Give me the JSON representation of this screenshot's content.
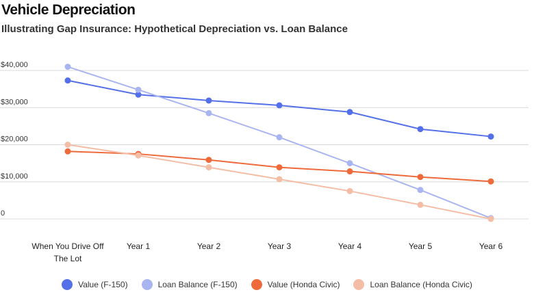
{
  "title": "Vehicle Depreciation",
  "subtitle": "Illustrating Gap Insurance: Hypothetical Depreciation vs. Loan Balance",
  "chart_data": {
    "type": "line",
    "categories": [
      [
        "When You Drive Off",
        "The Lot"
      ],
      [
        "Year 1"
      ],
      [
        "Year 2"
      ],
      [
        "Year 3"
      ],
      [
        "Year 4"
      ],
      [
        "Year 5"
      ],
      [
        "Year 6"
      ]
    ],
    "y_ticks": [
      0,
      10000,
      20000,
      30000,
      40000
    ],
    "y_tick_labels": [
      "0",
      "$10,000",
      "$20,000",
      "$30,000",
      "$40,000"
    ],
    "ylim": [
      0,
      40000
    ],
    "grid": true,
    "legend_position": "bottom",
    "series": [
      {
        "name": "Value (F-150)",
        "color": "#5470e8",
        "values": [
          37300,
          33500,
          31900,
          30600,
          28800,
          24200,
          22200
        ]
      },
      {
        "name": "Loan Balance (F-150)",
        "color": "#a9b5f0",
        "values": [
          41000,
          34800,
          28500,
          22000,
          15000,
          7800,
          200
        ]
      },
      {
        "name": "Value (Honda Civic)",
        "color": "#ef6a3a",
        "values": [
          18200,
          17500,
          15900,
          13900,
          12800,
          11300,
          10100
        ]
      },
      {
        "name": "Loan Balance (Honda Civic)",
        "color": "#f4bda6",
        "values": [
          20000,
          17100,
          13900,
          10700,
          7500,
          3800,
          0
        ]
      }
    ]
  }
}
